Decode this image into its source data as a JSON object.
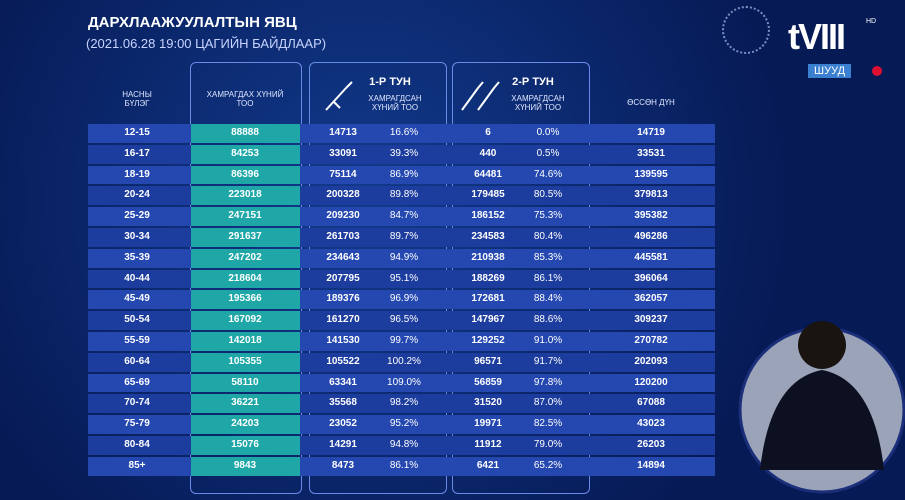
{
  "header": {
    "title": "ДАРХЛААЖУУЛАЛТЫН ЯВЦ",
    "subtitle": "(2021.06.28  19:00 ЦАГИЙН БАЙДЛААР)"
  },
  "channel": {
    "logo": "tVIII",
    "live": "ШУУД",
    "hd": "HD"
  },
  "table": {
    "headers": {
      "age": "НАСНЫ БҮЛЭГ",
      "target": "ХАМРАГДАХ ХҮНИЙ ТОО",
      "dose1": "1-Р ТУН",
      "dose1_sub": "ХАМРАГДСАН ХҮНИЙ ТОО",
      "dose2": "2-Р ТУН",
      "dose2_sub": "ХАМРАГДСАН ХҮНИЙ ТОО",
      "total": "ӨССӨН ДҮН"
    },
    "rows": [
      [
        "12-15",
        "88888",
        "14713",
        "16.6%",
        "6",
        "0.0%",
        "14719"
      ],
      [
        "16-17",
        "84253",
        "33091",
        "39.3%",
        "440",
        "0.5%",
        "33531"
      ],
      [
        "18-19",
        "86396",
        "75114",
        "86.9%",
        "64481",
        "74.6%",
        "139595"
      ],
      [
        "20-24",
        "223018",
        "200328",
        "89.8%",
        "179485",
        "80.5%",
        "379813"
      ],
      [
        "25-29",
        "247151",
        "209230",
        "84.7%",
        "186152",
        "75.3%",
        "395382"
      ],
      [
        "30-34",
        "291637",
        "261703",
        "89.7%",
        "234583",
        "80.4%",
        "496286"
      ],
      [
        "35-39",
        "247202",
        "234643",
        "94.9%",
        "210938",
        "85.3%",
        "445581"
      ],
      [
        "40-44",
        "218604",
        "207795",
        "95.1%",
        "188269",
        "86.1%",
        "396064"
      ],
      [
        "45-49",
        "195366",
        "189376",
        "96.9%",
        "172681",
        "88.4%",
        "362057"
      ],
      [
        "50-54",
        "167092",
        "161270",
        "96.5%",
        "147967",
        "88.6%",
        "309237"
      ],
      [
        "55-59",
        "142018",
        "141530",
        "99.7%",
        "129252",
        "91.0%",
        "270782"
      ],
      [
        "60-64",
        "105355",
        "105522",
        "100.2%",
        "96571",
        "91.7%",
        "202093"
      ],
      [
        "65-69",
        "58110",
        "63341",
        "109.0%",
        "56859",
        "97.8%",
        "120200"
      ],
      [
        "70-74",
        "36221",
        "35568",
        "98.2%",
        "31520",
        "87.0%",
        "67088"
      ],
      [
        "75-79",
        "24203",
        "23052",
        "95.2%",
        "19971",
        "82.5%",
        "43023"
      ],
      [
        "80-84",
        "15076",
        "14291",
        "94.8%",
        "11912",
        "79.0%",
        "26203"
      ],
      [
        "85+",
        "9843",
        "8473",
        "86.1%",
        "6421",
        "65.2%",
        "14894"
      ]
    ]
  }
}
